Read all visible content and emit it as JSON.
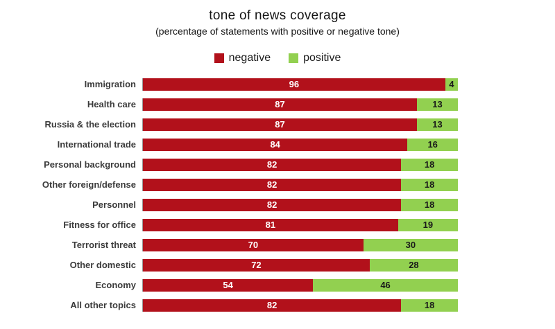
{
  "title": "tone of news coverage",
  "subtitle": "(percentage of statements with positive or negative tone)",
  "legend": {
    "negative_label": "negative",
    "positive_label": "positive"
  },
  "colors": {
    "negative": "#b2111b",
    "positive": "#92d050"
  },
  "chart_data": {
    "type": "bar",
    "orientation": "horizontal",
    "stacked": true,
    "title": "tone of news coverage",
    "subtitle": "(percentage of statements with positive or negative tone)",
    "xlabel": "",
    "ylabel": "",
    "xlim": [
      0,
      100
    ],
    "legend_position": "top",
    "grid": false,
    "categories": [
      "Immigration",
      "Health care",
      "Russia & the election",
      "International trade",
      "Personal background",
      "Other foreign/defense",
      "Personnel",
      "Fitness for office",
      "Terrorist threat",
      "Other domestic",
      "Economy",
      "All other topics"
    ],
    "series": [
      {
        "name": "negative",
        "color": "#b2111b",
        "values": [
          96,
          87,
          87,
          84,
          82,
          82,
          82,
          81,
          70,
          72,
          54,
          82
        ]
      },
      {
        "name": "positive",
        "color": "#92d050",
        "values": [
          4,
          13,
          13,
          16,
          18,
          18,
          18,
          19,
          30,
          28,
          46,
          18
        ]
      }
    ]
  }
}
